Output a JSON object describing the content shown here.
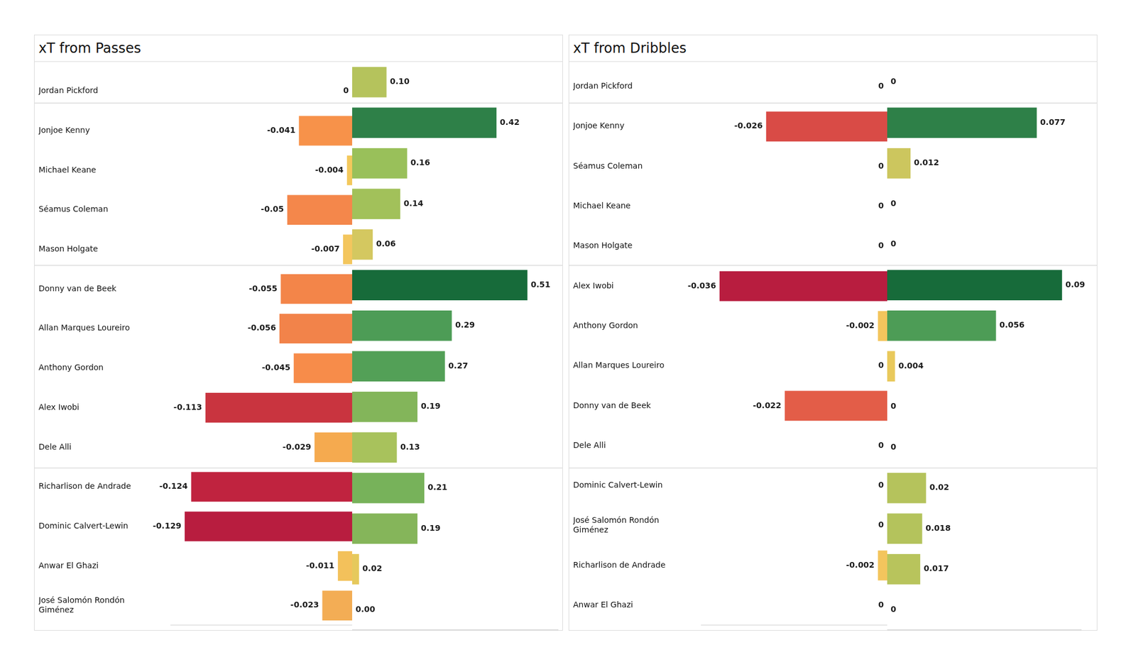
{
  "chart_data": [
    {
      "type": "bar",
      "orientation": "horizontal",
      "title": "xT from Passes",
      "categories": [
        "Jordan Pickford",
        "Jonjoe Kenny",
        "Michael Keane",
        "Séamus Coleman",
        "Mason Holgate",
        "Donny van de Beek",
        "Allan Marques Loureiro",
        "Anthony Gordon",
        "Alex Iwobi",
        "Dele Alli",
        "Richarlison de Andrade",
        "Dominic Calvert-Lewin",
        "Anwar El Ghazi",
        "José Salomón Rondón Giménez"
      ],
      "group_sizes": [
        1,
        4,
        5,
        4
      ],
      "data_labels": true,
      "tick_labels": "y",
      "negative": {
        "values": [
          0,
          -0.041,
          -0.004,
          -0.05,
          -0.007,
          -0.055,
          -0.056,
          -0.045,
          -0.113,
          -0.029,
          -0.124,
          -0.129,
          -0.011,
          -0.023
        ],
        "value_labels": [
          "0",
          "-0.041",
          "-0.004",
          "-0.05",
          "-0.007",
          "-0.055",
          "-0.056",
          "-0.045",
          "-0.113",
          "-0.029",
          "-0.124",
          "-0.129",
          "-0.011",
          "-0.023"
        ],
        "colors": [
          "#f3c95f",
          "#f7924a",
          "#f3c85c",
          "#f4874b",
          "#f3c65e",
          "#f38549",
          "#f2834a",
          "#f78c4a",
          "#c9343f",
          "#f5aa4f",
          "#c0233f",
          "#b81d3f",
          "#f3c15b",
          "#f3ad55"
        ],
        "xlim": [
          -0.14,
          0
        ]
      },
      "positive": {
        "values": [
          0.1,
          0.42,
          0.16,
          0.14,
          0.06,
          0.51,
          0.29,
          0.27,
          0.19,
          0.13,
          0.21,
          0.19,
          0.02,
          0.0
        ],
        "value_labels": [
          "0.10",
          "0.42",
          "0.16",
          "0.14",
          "0.06",
          "0.51",
          "0.29",
          "0.27",
          "0.19",
          "0.13",
          "0.21",
          "0.19",
          "0.02",
          "0.00"
        ],
        "colors": [
          "#b5c35c",
          "#2e8048",
          "#99c05a",
          "#a2c15a",
          "#d4c860",
          "#176b3a",
          "#4d9c56",
          "#53a057",
          "#83b55a",
          "#a8c25c",
          "#77b25a",
          "#85b55a",
          "#e6c95c",
          "#f0cc5e"
        ],
        "xlim": [
          0,
          0.6
        ]
      }
    },
    {
      "type": "bar",
      "orientation": "horizontal",
      "title": "xT from Dribbles",
      "categories": [
        "Jordan Pickford",
        "Jonjoe Kenny",
        "Séamus Coleman",
        "Michael Keane",
        "Mason Holgate",
        "Alex Iwobi",
        "Anthony Gordon",
        "Allan Marques Loureiro",
        "Donny van de Beek",
        "Dele Alli",
        "Dominic Calvert-Lewin",
        "José Salomón Rondón Giménez",
        "Richarlison de Andrade",
        "Anwar El Ghazi"
      ],
      "group_sizes": [
        1,
        4,
        5,
        4
      ],
      "data_labels": true,
      "tick_labels": "y",
      "negative": {
        "values": [
          0,
          -0.026,
          0,
          0,
          0,
          -0.036,
          -0.002,
          0,
          -0.022,
          0,
          0,
          0,
          -0.002,
          0
        ],
        "value_labels": [
          "0",
          "-0.026",
          "0",
          "0",
          "0",
          "-0.036",
          "-0.002",
          "0",
          "-0.022",
          "0",
          "0",
          "0",
          "-0.002",
          "0"
        ],
        "colors": [
          "#f0cc5e",
          "#d94b46",
          "#f0cc5e",
          "#f0cc5e",
          "#f0cc5e",
          "#b81d3f",
          "#f3c55d",
          "#f0cc5e",
          "#e35d48",
          "#f0cc5e",
          "#f0cc5e",
          "#f0cc5e",
          "#f3c55d",
          "#f0cc5e"
        ],
        "xlim": [
          -0.04,
          0
        ]
      },
      "positive": {
        "values": [
          0,
          0.077,
          0.012,
          0,
          0,
          0.09,
          0.056,
          0.004,
          0,
          0,
          0.02,
          0.018,
          0.017,
          0
        ],
        "value_labels": [
          "0",
          "0.077",
          "0.012",
          "0",
          "0",
          "0.09",
          "0.056",
          "0.004",
          "0",
          "0",
          "0.02",
          "0.018",
          "0.017",
          "0"
        ],
        "colors": [
          "#f0cc5e",
          "#2e8048",
          "#ccc65e",
          "#f0cc5e",
          "#f0cc5e",
          "#176b3a",
          "#4d9c56",
          "#e9c95c",
          "#f0cc5e",
          "#f0cc5e",
          "#b5c35c",
          "#b4c35c",
          "#b8c45c",
          "#f0cc5e"
        ],
        "xlim": [
          0,
          0.1
        ]
      }
    }
  ]
}
